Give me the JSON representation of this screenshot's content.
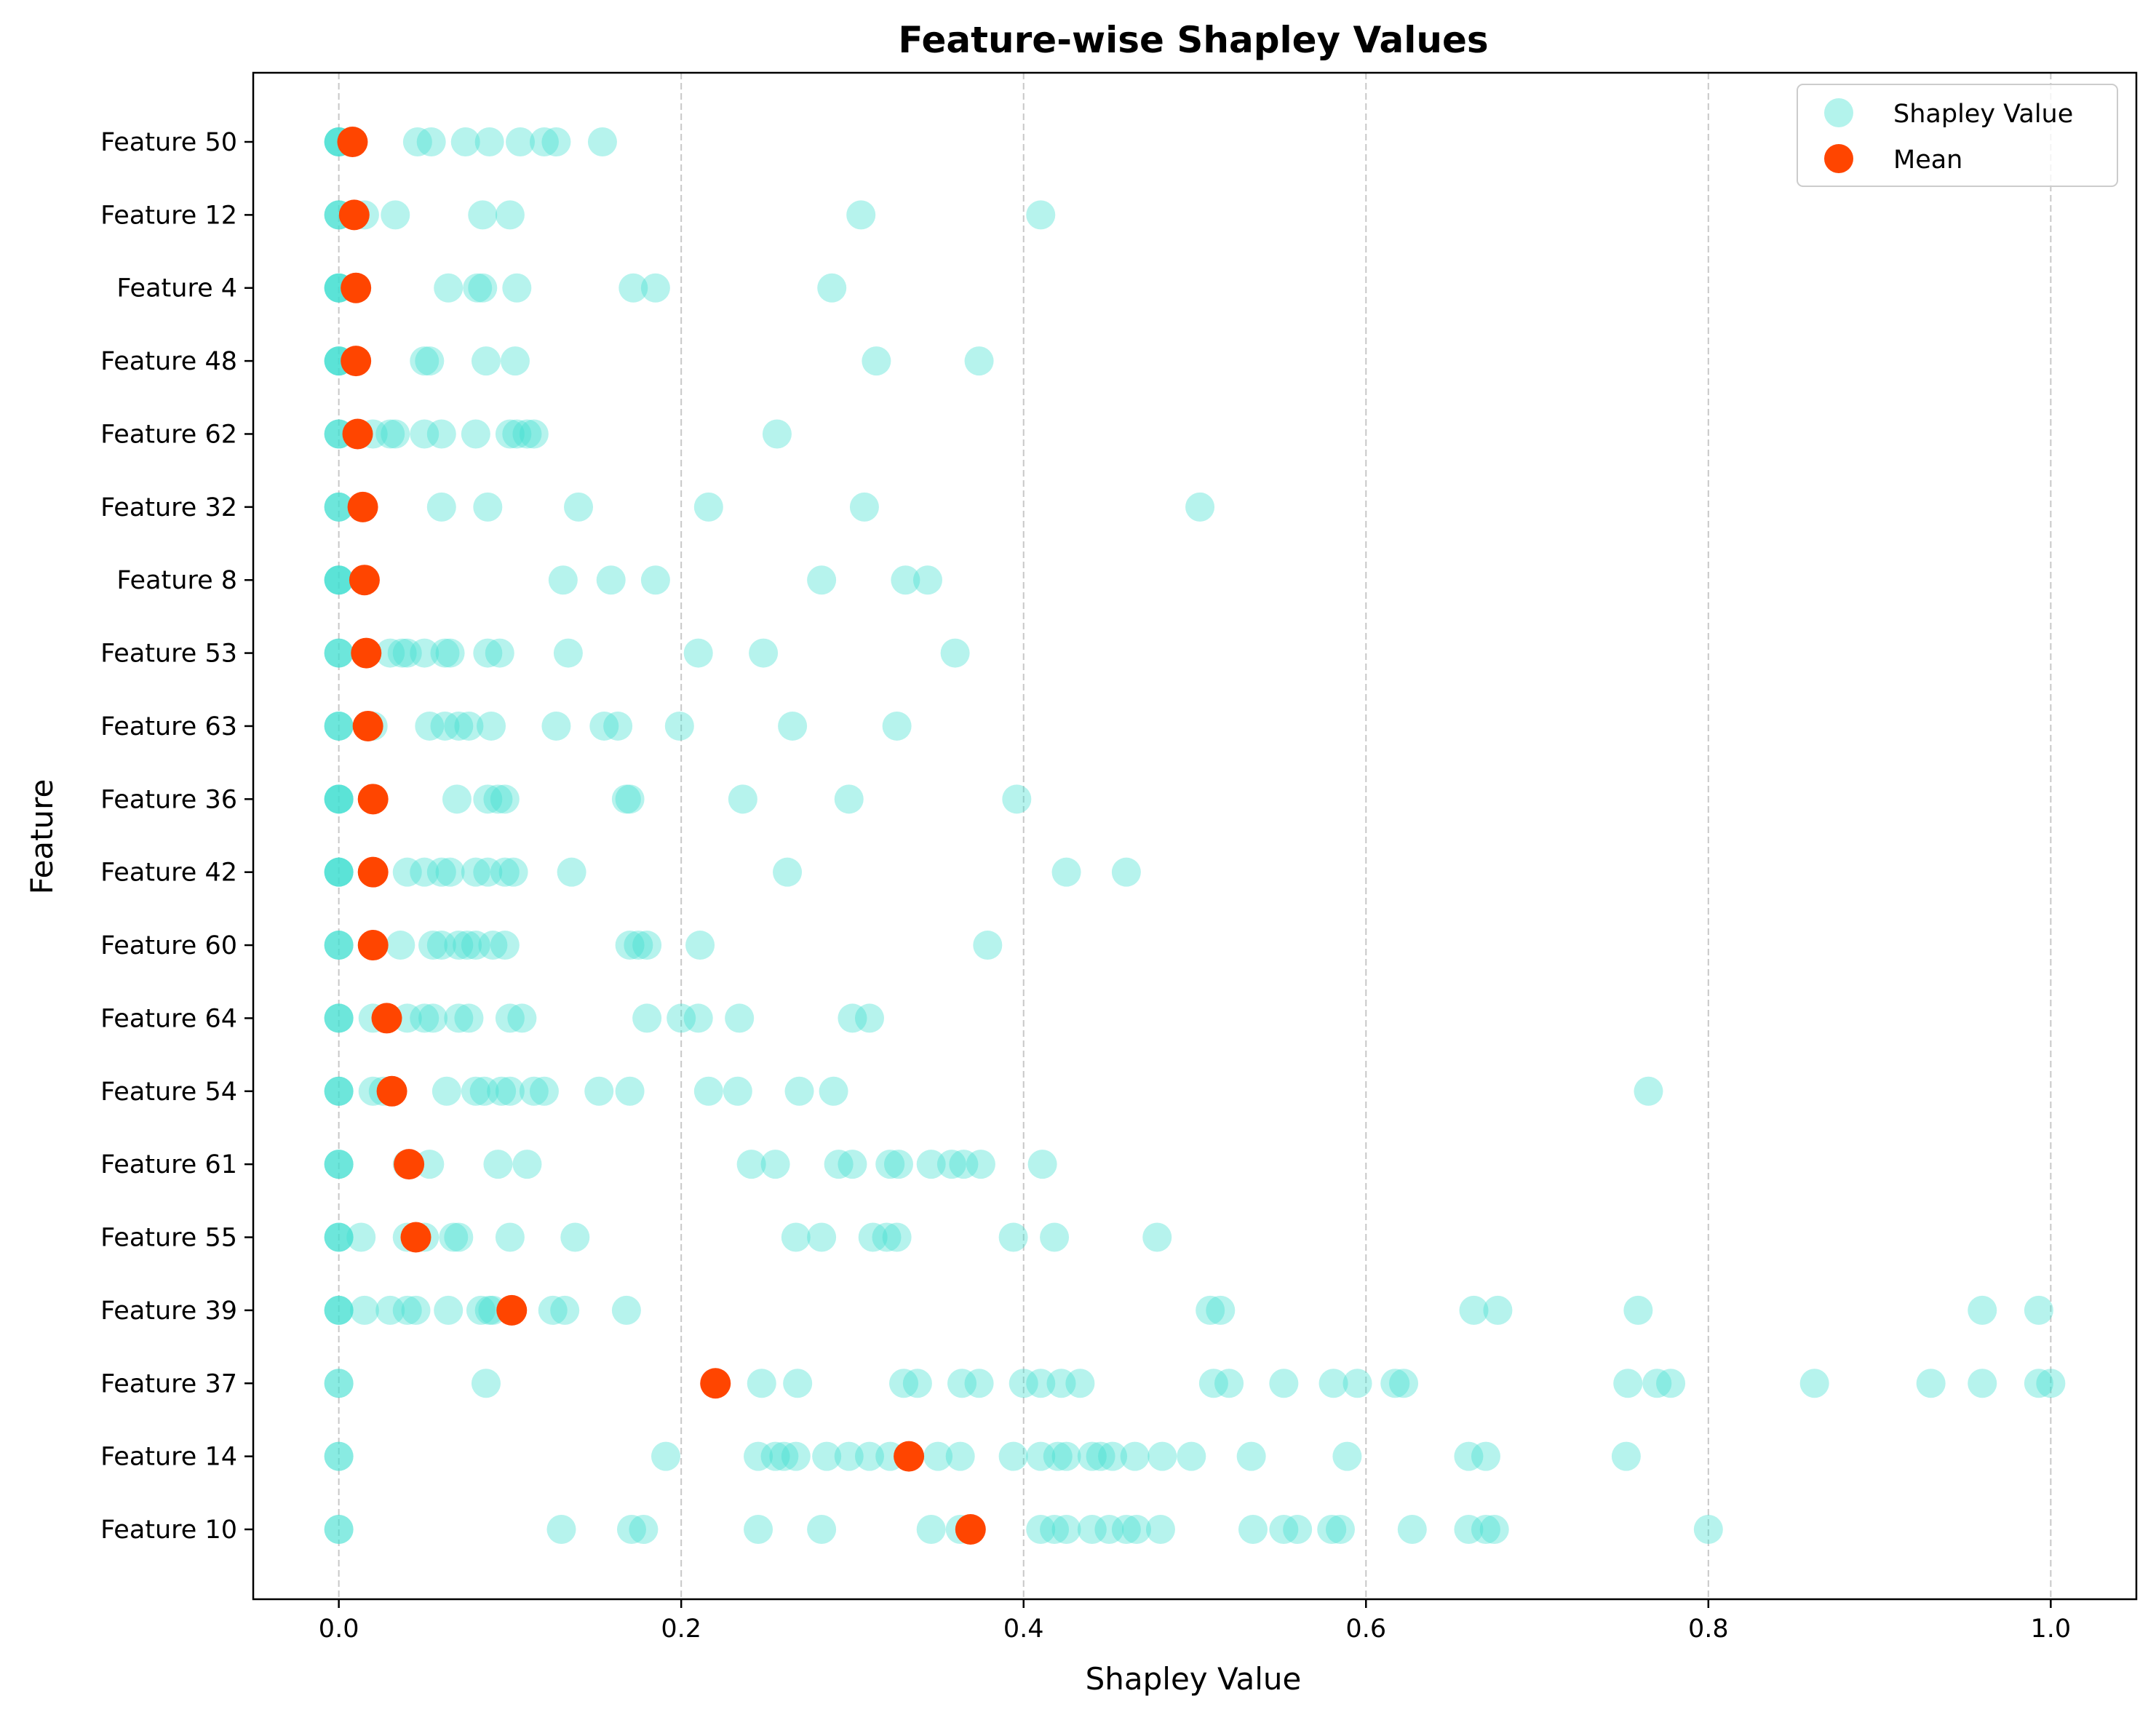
{
  "chart_data": {
    "type": "scatter",
    "title": "Feature-wise Shapley Values",
    "xlabel": "Shapley Value",
    "ylabel": "Feature",
    "xlim": [
      -0.05,
      1.05
    ],
    "xticks": [
      "0.0",
      "0.2",
      "0.4",
      "0.6",
      "0.8",
      "1.0"
    ],
    "xtick_values": [
      0.0,
      0.2,
      0.4,
      0.6,
      0.8,
      1.0
    ],
    "grid": "x dashed",
    "legend": {
      "placement": "top-right",
      "entries": [
        "Shapley Value",
        "Mean"
      ]
    },
    "colors": {
      "shapley": "#40E0D0",
      "mean": "#FF4500"
    },
    "features": [
      {
        "name": "Feature 50",
        "mean": 0.008,
        "values": [
          0,
          0,
          0,
          0,
          0.046,
          0.054,
          0.074,
          0.088,
          0.106,
          0.12,
          0.127,
          0.154
        ]
      },
      {
        "name": "Feature 12",
        "mean": 0.009,
        "values": [
          0,
          0,
          0,
          0.015,
          0.033,
          0.084,
          0.1,
          0.305,
          0.41
        ]
      },
      {
        "name": "Feature 4",
        "mean": 0.01,
        "values": [
          0,
          0,
          0,
          0,
          0.064,
          0.081,
          0.084,
          0.104,
          0.172,
          0.185,
          0.288
        ]
      },
      {
        "name": "Feature 48",
        "mean": 0.01,
        "values": [
          0,
          0,
          0,
          0,
          0.05,
          0.053,
          0.086,
          0.103,
          0.314,
          0.374
        ]
      },
      {
        "name": "Feature 62",
        "mean": 0.011,
        "values": [
          0,
          0,
          0,
          0.02,
          0.03,
          0.033,
          0.05,
          0.06,
          0.08,
          0.1,
          0.104,
          0.11,
          0.114,
          0.256
        ]
      },
      {
        "name": "Feature 32",
        "mean": 0.014,
        "values": [
          0,
          0,
          0,
          0.06,
          0.087,
          0.14,
          0.216,
          0.307,
          0.503
        ]
      },
      {
        "name": "Feature 8",
        "mean": 0.015,
        "values": [
          0,
          0,
          0,
          0,
          0.131,
          0.159,
          0.185,
          0.282,
          0.331,
          0.344
        ]
      },
      {
        "name": "Feature 53",
        "mean": 0.016,
        "values": [
          0,
          0,
          0,
          0.03,
          0.037,
          0.04,
          0.05,
          0.062,
          0.065,
          0.087,
          0.094,
          0.134,
          0.21,
          0.248,
          0.36
        ]
      },
      {
        "name": "Feature 63",
        "mean": 0.017,
        "values": [
          0,
          0,
          0,
          0.02,
          0.053,
          0.062,
          0.07,
          0.076,
          0.089,
          0.127,
          0.155,
          0.163,
          0.199,
          0.265,
          0.326
        ]
      },
      {
        "name": "Feature 36",
        "mean": 0.02,
        "values": [
          0,
          0,
          0,
          0,
          0.069,
          0.087,
          0.093,
          0.097,
          0.168,
          0.17,
          0.236,
          0.298,
          0.396
        ]
      },
      {
        "name": "Feature 42",
        "mean": 0.02,
        "values": [
          0,
          0,
          0,
          0,
          0.04,
          0.05,
          0.06,
          0.065,
          0.08,
          0.087,
          0.097,
          0.102,
          0.136,
          0.262,
          0.425,
          0.46
        ]
      },
      {
        "name": "Feature 60",
        "mean": 0.02,
        "values": [
          0,
          0,
          0,
          0.02,
          0.036,
          0.055,
          0.06,
          0.07,
          0.075,
          0.08,
          0.09,
          0.097,
          0.17,
          0.175,
          0.18,
          0.211,
          0.379
        ]
      },
      {
        "name": "Feature 64",
        "mean": 0.028,
        "values": [
          0,
          0,
          0,
          0.02,
          0.04,
          0.05,
          0.055,
          0.07,
          0.076,
          0.1,
          0.107,
          0.18,
          0.2,
          0.21,
          0.234,
          0.3,
          0.31
        ]
      },
      {
        "name": "Feature 54",
        "mean": 0.031,
        "values": [
          0,
          0,
          0,
          0.02,
          0.026,
          0.063,
          0.08,
          0.085,
          0.095,
          0.1,
          0.114,
          0.12,
          0.152,
          0.17,
          0.216,
          0.233,
          0.269,
          0.289,
          0.765
        ]
      },
      {
        "name": "Feature 61",
        "mean": 0.041,
        "values": [
          0,
          0,
          0,
          0.04,
          0.053,
          0.093,
          0.11,
          0.241,
          0.255,
          0.292,
          0.3,
          0.322,
          0.327,
          0.346,
          0.358,
          0.365,
          0.375,
          0.411
        ]
      },
      {
        "name": "Feature 55",
        "mean": 0.045,
        "values": [
          0,
          0,
          0,
          0.013,
          0.04,
          0.05,
          0.067,
          0.07,
          0.1,
          0.138,
          0.267,
          0.282,
          0.312,
          0.32,
          0.326,
          0.394,
          0.418,
          0.478
        ]
      },
      {
        "name": "Feature 39",
        "mean": 0.101,
        "values": [
          0,
          0,
          0,
          0.015,
          0.03,
          0.04,
          0.045,
          0.064,
          0.083,
          0.088,
          0.09,
          0.125,
          0.132,
          0.168,
          0.509,
          0.515,
          0.663,
          0.677,
          0.759,
          0.96,
          0.993
        ]
      },
      {
        "name": "Feature 37",
        "mean": 0.22,
        "values": [
          0,
          0,
          0.086,
          0.247,
          0.268,
          0.33,
          0.338,
          0.364,
          0.374,
          0.4,
          0.41,
          0.422,
          0.433,
          0.511,
          0.52,
          0.552,
          0.581,
          0.595,
          0.617,
          0.622,
          0.753,
          0.77,
          0.778,
          0.862,
          0.93,
          0.96,
          0.993,
          1.0
        ]
      },
      {
        "name": "Feature 14",
        "mean": 0.333,
        "values": [
          0,
          0,
          0.191,
          0.245,
          0.255,
          0.26,
          0.267,
          0.285,
          0.298,
          0.31,
          0.322,
          0.35,
          0.363,
          0.394,
          0.41,
          0.42,
          0.425,
          0.44,
          0.445,
          0.452,
          0.465,
          0.481,
          0.498,
          0.533,
          0.589,
          0.66,
          0.67,
          0.752
        ]
      },
      {
        "name": "Feature 10",
        "mean": 0.369,
        "values": [
          0,
          0,
          0.13,
          0.171,
          0.178,
          0.245,
          0.282,
          0.346,
          0.363,
          0.41,
          0.418,
          0.425,
          0.44,
          0.45,
          0.46,
          0.466,
          0.48,
          0.534,
          0.552,
          0.56,
          0.58,
          0.585,
          0.627,
          0.66,
          0.67,
          0.675,
          0.8
        ]
      }
    ]
  }
}
